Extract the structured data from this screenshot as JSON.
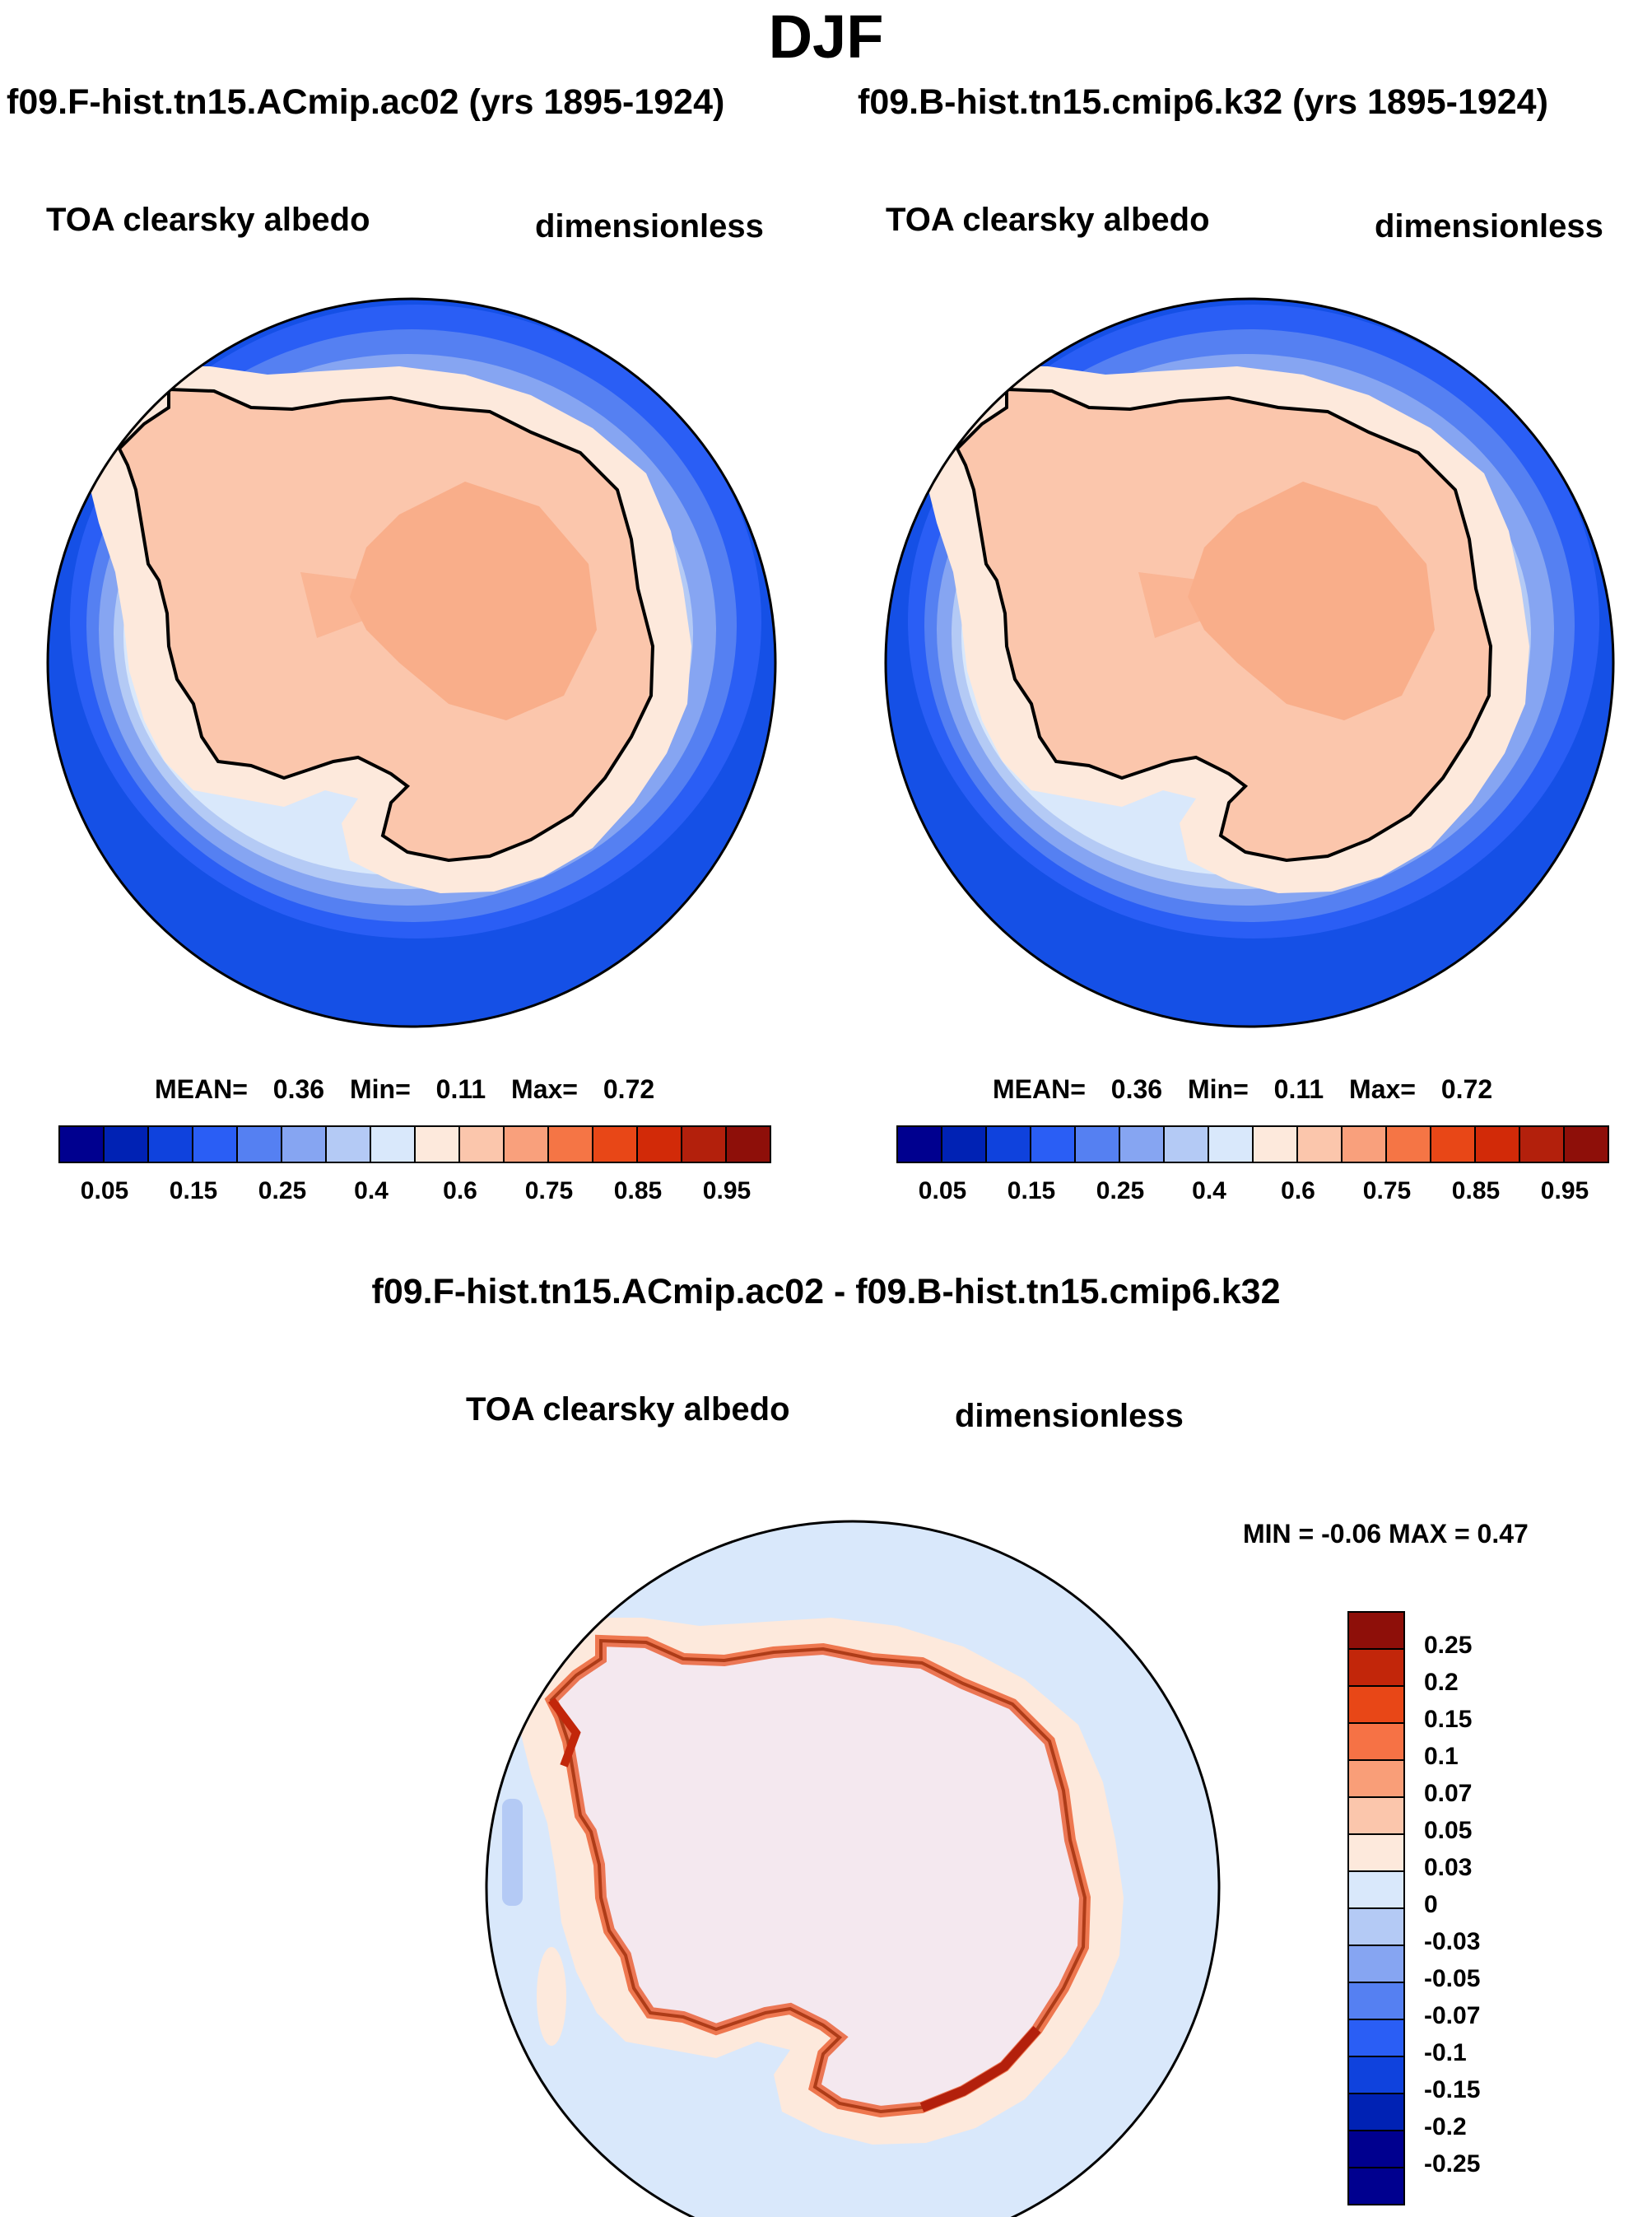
{
  "title": "DJF",
  "panels": [
    {
      "header": "f09.F-hist.tn15.ACmip.ac02 (yrs 1895-1924)",
      "variable": "TOA clearsky albedo",
      "units": "dimensionless",
      "stats": {
        "mean_label": "MEAN=",
        "mean": "0.36",
        "min_label": "Min=",
        "min": "0.11",
        "max_label": "Max=",
        "max": "0.72"
      }
    },
    {
      "header": "f09.B-hist.tn15.cmip6.k32 (yrs 1895-1924)",
      "variable": "TOA clearsky albedo",
      "units": "dimensionless",
      "stats": {
        "mean_label": "MEAN=",
        "mean": "0.36",
        "min_label": "Min=",
        "min": "0.11",
        "max_label": "Max=",
        "max": "0.72"
      }
    }
  ],
  "colorbar": {
    "ticks": [
      "0.05",
      "0.15",
      "0.25",
      "0.4",
      "0.6",
      "0.75",
      "0.85",
      "0.95"
    ],
    "colors": [
      "#00008f",
      "#0022b4",
      "#0f42dd",
      "#2a5ef5",
      "#5580f2",
      "#86a5f2",
      "#b4caf5",
      "#d9e8fb",
      "#fde9dc",
      "#fbc6ac",
      "#f9a07c",
      "#f57545",
      "#e84717",
      "#d22a08",
      "#b3200c",
      "#8e0f09"
    ]
  },
  "diff": {
    "header": "f09.F-hist.tn15.ACmip.ac02 - f09.B-hist.tn15.cmip6.k32",
    "variable": "TOA clearsky albedo",
    "units": "dimensionless",
    "minmax": "MIN =  -0.06 MAX =   0.47",
    "colorbar_labels": [
      "0.25",
      "0.2",
      "0.15",
      "0.1",
      "0.07",
      "0.05",
      "0.03",
      "0",
      "-0.03",
      "-0.05",
      "-0.07",
      "-0.1",
      "-0.15",
      "-0.2",
      "-0.25"
    ],
    "colorbar_colors": [
      "#8e0f09",
      "#c2260a",
      "#e84717",
      "#f67245",
      "#f99e78",
      "#fbc6ac",
      "#fde9dc",
      "#d9e8fb",
      "#b4caf5",
      "#86a5f2",
      "#5580f2",
      "#2a5ef5",
      "#0f42dd",
      "#0022b4",
      "#00008f"
    ]
  }
}
